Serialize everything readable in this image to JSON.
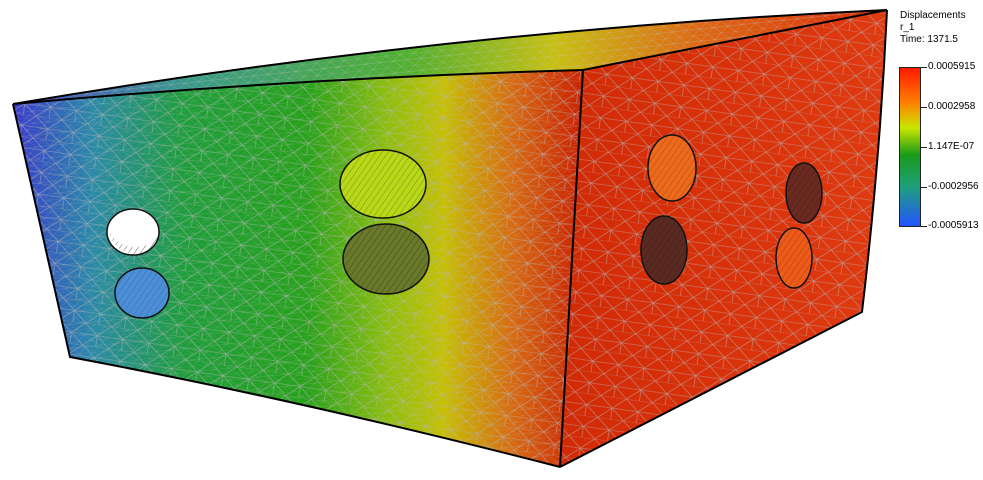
{
  "legend": {
    "field": "Displacements",
    "component": "r_1",
    "time": "Time: 1371.5",
    "ticks": [
      {
        "label": "0.0005915",
        "value": 0.0005915
      },
      {
        "label": "0.0002958",
        "value": 0.0002958
      },
      {
        "label": "1.147E-07",
        "value": 1.147e-07
      },
      {
        "label": "-0.0002956",
        "value": -0.0002956
      },
      {
        "label": "-0.0005913",
        "value": -0.0005913
      }
    ],
    "colors": [
      "#ff1a00",
      "#ff8000",
      "#c8e600",
      "#1a9a1a",
      "#1fa07a",
      "#2255ff"
    ]
  },
  "model": {
    "front_face_gradient": [
      "#3a3acc",
      "#2a8aa8",
      "#1e9e3c",
      "#27a21a",
      "#7cbc10",
      "#c7c000",
      "#d86a10",
      "#cc2200"
    ],
    "side_face_color": "#dd2a08",
    "mesh_color": "#9a9a9a"
  }
}
